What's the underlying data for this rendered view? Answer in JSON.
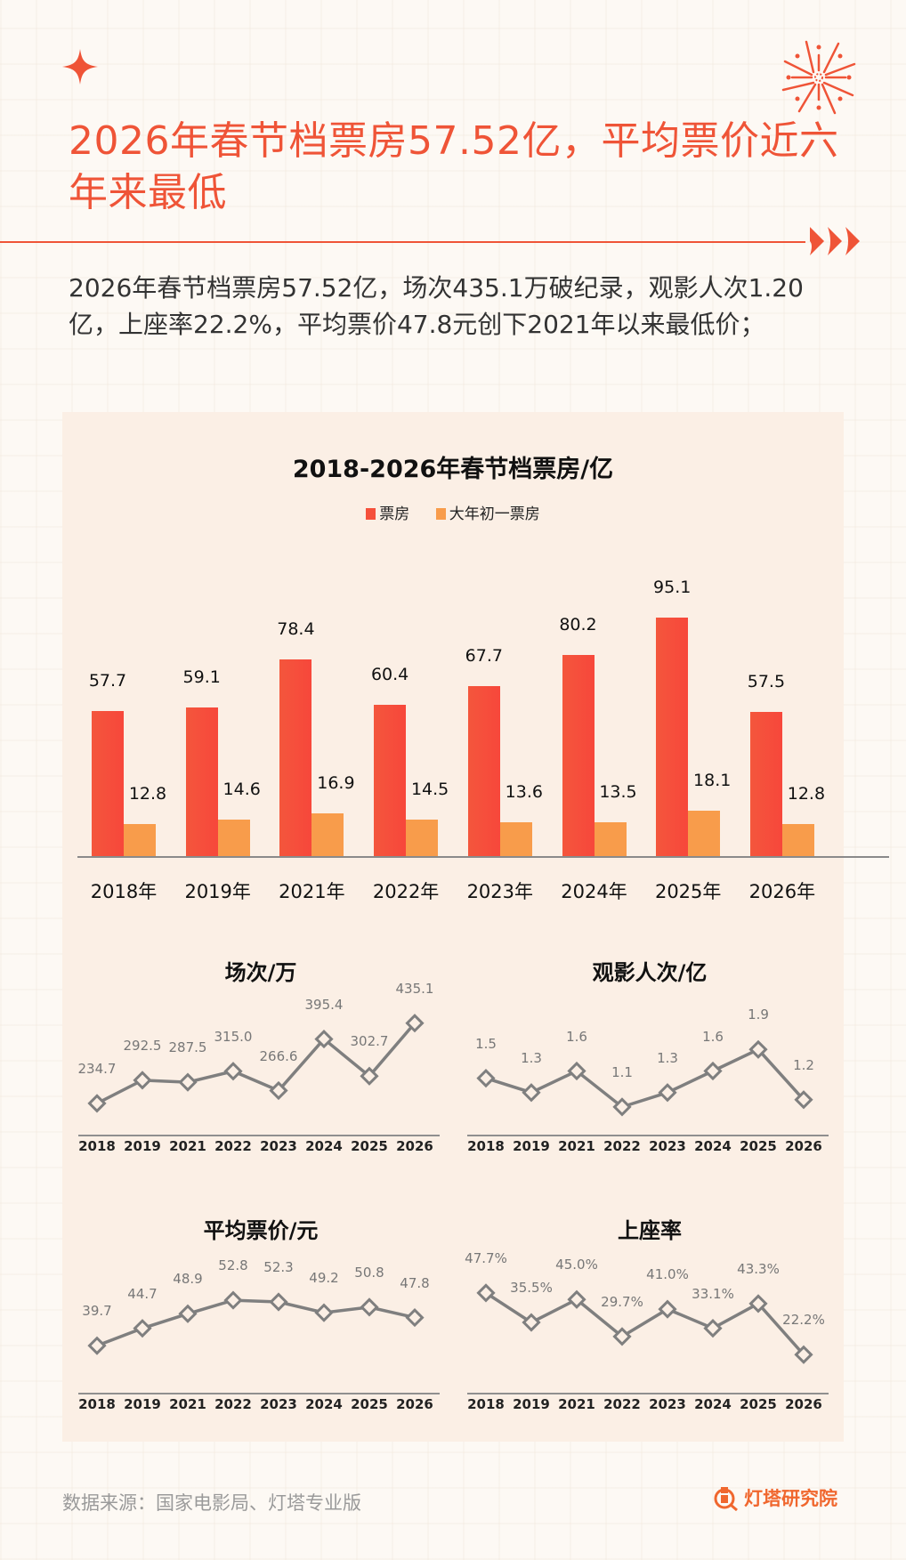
{
  "header": {
    "title": "2026年春节档票房57.52亿，平均票价近六年来最低",
    "summary": "2026年春节档票房57.52亿，场次435.1万破纪录，观影人次1.20亿，上座率22.2%，平均票价47.8元创下2021年以来最低价；",
    "decorations": [
      "four-point-star-icon",
      "firework-icon",
      "triple-arrow-icon"
    ]
  },
  "colors": {
    "accent": "#EF5437",
    "bar_red": "#F5503B",
    "bar_orange": "#F89C4B",
    "line_gray": "#7F7F7F",
    "panel_bg": "#FBEFE5",
    "page_bg": "#FDF9F4",
    "brand_orange": "#F0672E"
  },
  "chart_data": [
    {
      "type": "bar",
      "title": "2018-2026年春节档票房/亿",
      "categories": [
        "2018年",
        "2019年",
        "2021年",
        "2022年",
        "2023年",
        "2024年",
        "2025年",
        "2026年"
      ],
      "series": [
        {
          "name": "票房",
          "values": [
            57.7,
            59.1,
            78.4,
            60.4,
            67.7,
            80.2,
            95.1,
            57.5
          ]
        },
        {
          "name": "大年初一票房",
          "values": [
            12.8,
            14.6,
            16.9,
            14.5,
            13.6,
            13.5,
            18.1,
            12.8
          ]
        }
      ],
      "legend_position": "top",
      "grid": false,
      "xlabel": "",
      "ylabel": ""
    },
    {
      "type": "line",
      "title": "场次/万",
      "x": [
        "2018",
        "2019",
        "2021",
        "2022",
        "2023",
        "2024",
        "2025",
        "2026"
      ],
      "values": [
        234.7,
        292.5,
        287.5,
        315.0,
        266.6,
        395.4,
        302.7,
        435.1
      ],
      "labels": [
        "234.7",
        "292.5",
        "287.5",
        "315.0",
        "266.6",
        "395.4",
        "302.7",
        "435.1"
      ],
      "marker": "diamond-hollow"
    },
    {
      "type": "line",
      "title": "观影人次/亿",
      "x": [
        "2018",
        "2019",
        "2021",
        "2022",
        "2023",
        "2024",
        "2025",
        "2026"
      ],
      "values": [
        1.5,
        1.3,
        1.6,
        1.1,
        1.3,
        1.6,
        1.9,
        1.2
      ],
      "labels": [
        "1.5",
        "1.3",
        "1.6",
        "1.1",
        "1.3",
        "1.6",
        "1.9",
        "1.2"
      ],
      "marker": "diamond-hollow"
    },
    {
      "type": "line",
      "title": "平均票价/元",
      "x": [
        "2018",
        "2019",
        "2021",
        "2022",
        "2023",
        "2024",
        "2025",
        "2026"
      ],
      "values": [
        39.7,
        44.7,
        48.9,
        52.8,
        52.3,
        49.2,
        50.8,
        47.8
      ],
      "labels": [
        "39.7",
        "44.7",
        "48.9",
        "52.8",
        "52.3",
        "49.2",
        "50.8",
        "47.8"
      ],
      "marker": "diamond-hollow"
    },
    {
      "type": "line",
      "title": "上座率",
      "x": [
        "2018",
        "2019",
        "2021",
        "2022",
        "2023",
        "2024",
        "2025",
        "2026"
      ],
      "values": [
        47.7,
        35.5,
        45.0,
        29.7,
        41.0,
        33.1,
        43.3,
        22.2
      ],
      "labels": [
        "47.7%",
        "35.5%",
        "45.0%",
        "29.7%",
        "41.0%",
        "33.1%",
        "43.3%",
        "22.2%"
      ],
      "marker": "diamond-hollow"
    }
  ],
  "footer": {
    "source": "数据来源：国家电影局、灯塔专业版",
    "brand": "灯塔研究院",
    "brand_icon": "dengta-logo-icon"
  }
}
